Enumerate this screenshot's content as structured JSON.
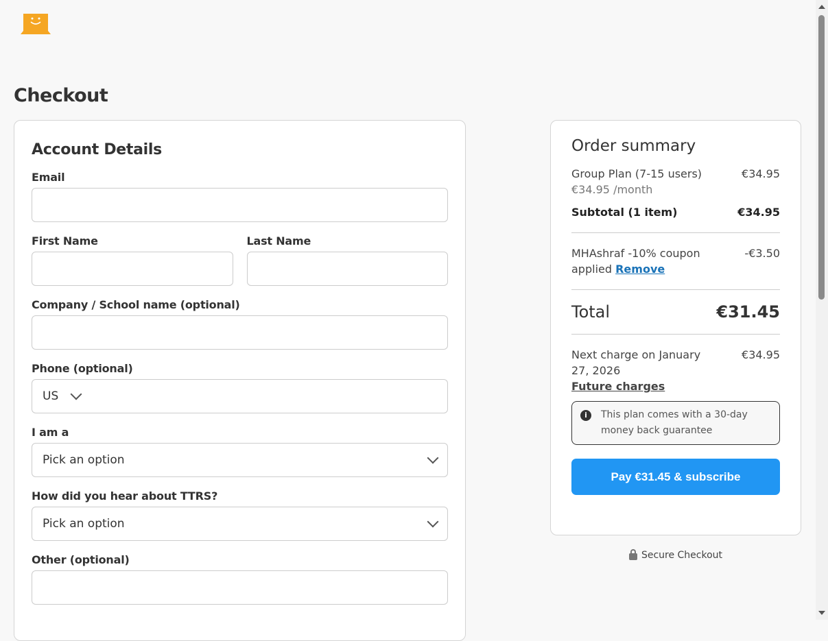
{
  "brand": {
    "logo_color": "#f5a623"
  },
  "page_title": "Checkout",
  "account": {
    "title": "Account Details",
    "email": {
      "label": "Email",
      "value": ""
    },
    "first_name": {
      "label": "First Name",
      "value": ""
    },
    "last_name": {
      "label": "Last Name",
      "value": ""
    },
    "company": {
      "label": "Company / School name (optional)",
      "value": ""
    },
    "phone": {
      "label": "Phone (optional)",
      "country": "US",
      "value": ""
    },
    "i_am_a": {
      "label": "I am a",
      "selected": "Pick an option"
    },
    "hear_about": {
      "label": "How did you hear about TTRS?",
      "selected": "Pick an option"
    },
    "other": {
      "label": "Other (optional)",
      "value": ""
    }
  },
  "summary": {
    "title": "Order summary",
    "item_name": "Group Plan (7-15 users)",
    "item_price": "€34.95",
    "item_sub": "€34.95 /month",
    "subtotal_label": "Subtotal (1 item)",
    "subtotal": "€34.95",
    "coupon_text": "MHAshraf -10% coupon applied",
    "coupon_remove": "Remove",
    "coupon_amount": "-€3.50",
    "total_label": "Total",
    "total": "€31.45",
    "next_charge": "Next charge on January 27, 2026",
    "next_amount": "€34.95",
    "future_link": "Future charges",
    "guarantee": "This plan comes with a 30-day money back guarantee",
    "pay_button": "Pay €31.45 & subscribe",
    "accent": "#2196f3"
  },
  "secure": "Secure Checkout"
}
